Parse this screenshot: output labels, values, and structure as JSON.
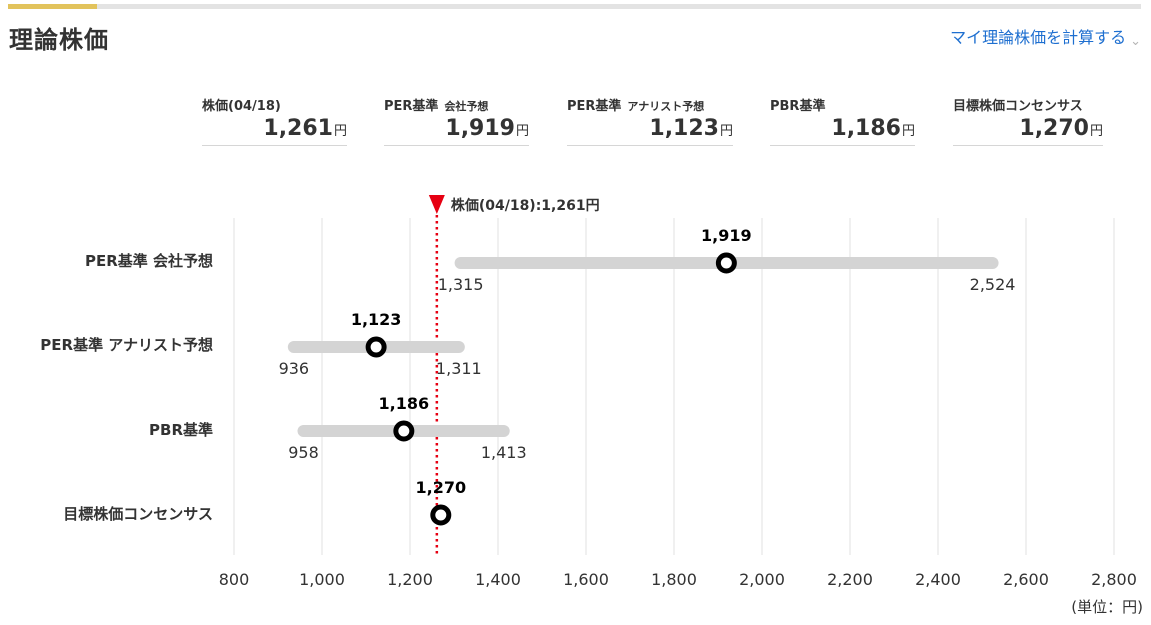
{
  "header": {
    "title": "理論株価",
    "calc_link": "マイ理論株価を計算する"
  },
  "summary": [
    {
      "label": "株価(04/18)",
      "sub": "",
      "value": "1,261",
      "unit": "円"
    },
    {
      "label": "PER基準",
      "sub": "会社予想",
      "value": "1,919",
      "unit": "円"
    },
    {
      "label": "PER基準",
      "sub": "アナリスト予想",
      "value": "1,123",
      "unit": "円"
    },
    {
      "label": "PBR基準",
      "sub": "",
      "value": "1,186",
      "unit": "円"
    },
    {
      "label": "目標株価コンセンサス",
      "sub": "",
      "value": "1,270",
      "unit": "円"
    }
  ],
  "chart_data": {
    "type": "range-dot",
    "xlim": [
      800,
      2800
    ],
    "x_ticks": [
      800,
      1000,
      1200,
      1400,
      1600,
      1800,
      2000,
      2200,
      2400,
      2600,
      2800
    ],
    "x_tick_labels": [
      "800",
      "1,000",
      "1,200",
      "1,400",
      "1,600",
      "1,800",
      "2,000",
      "2,200",
      "2,400",
      "2,600",
      "2,800"
    ],
    "grid": true,
    "unit_note": "(単位：円)",
    "marker": {
      "value": 1261,
      "label": "株価(04/18):1,261円",
      "color": "#e60012"
    },
    "rows": [
      {
        "label": "PER基準 会社予想",
        "value": 1919,
        "value_label": "1,919",
        "low": 1315,
        "low_label": "1,315",
        "high": 2524,
        "high_label": "2,524"
      },
      {
        "label": "PER基準 アナリスト予想",
        "value": 1123,
        "value_label": "1,123",
        "low": 936,
        "low_label": "936",
        "high": 1311,
        "high_label": "1,311"
      },
      {
        "label": "PBR基準",
        "value": 1186,
        "value_label": "1,186",
        "low": 958,
        "low_label": "958",
        "high": 1413,
        "high_label": "1,413"
      },
      {
        "label": "目標株価コンセンサス",
        "value": 1270,
        "value_label": "1,270",
        "low": null,
        "high": null
      }
    ]
  }
}
